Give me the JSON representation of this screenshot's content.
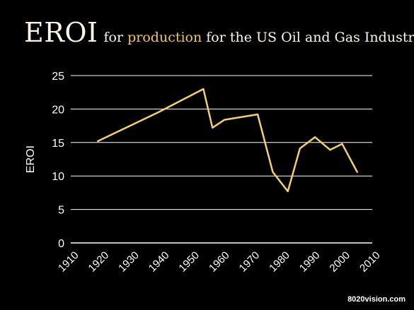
{
  "title": {
    "main": "EROI",
    "pre": "for ",
    "highlight": "production",
    "post": " for the US Oil and Gas Industry"
  },
  "watermark": "8020vision.com",
  "colors": {
    "background": "#000000",
    "line": "#f5cd72",
    "highlight": "#f2c75c",
    "grid": "#ffffff",
    "text": "#ffffff"
  },
  "chart_data": {
    "type": "line",
    "title": "EROI for production for the US Oil and Gas Industry",
    "xlabel": "",
    "ylabel": "EROI",
    "xlim": [
      1910,
      2010
    ],
    "ylim": [
      0,
      25
    ],
    "xticks": [
      1910,
      1920,
      1930,
      1940,
      1950,
      1960,
      1970,
      1980,
      1990,
      2000,
      2010
    ],
    "yticks": [
      0,
      5,
      10,
      15,
      20,
      25
    ],
    "grid": true,
    "series": [
      {
        "x": [
          1919,
          1939,
          1954,
          1957,
          1961,
          1972,
          1977,
          1982,
          1986,
          1991,
          1996,
          2000,
          2005
        ],
        "y": [
          15.2,
          19.5,
          23.0,
          17.2,
          18.4,
          19.2,
          10.6,
          7.7,
          14.1,
          15.8,
          13.9,
          14.8,
          10.6
        ]
      }
    ]
  }
}
